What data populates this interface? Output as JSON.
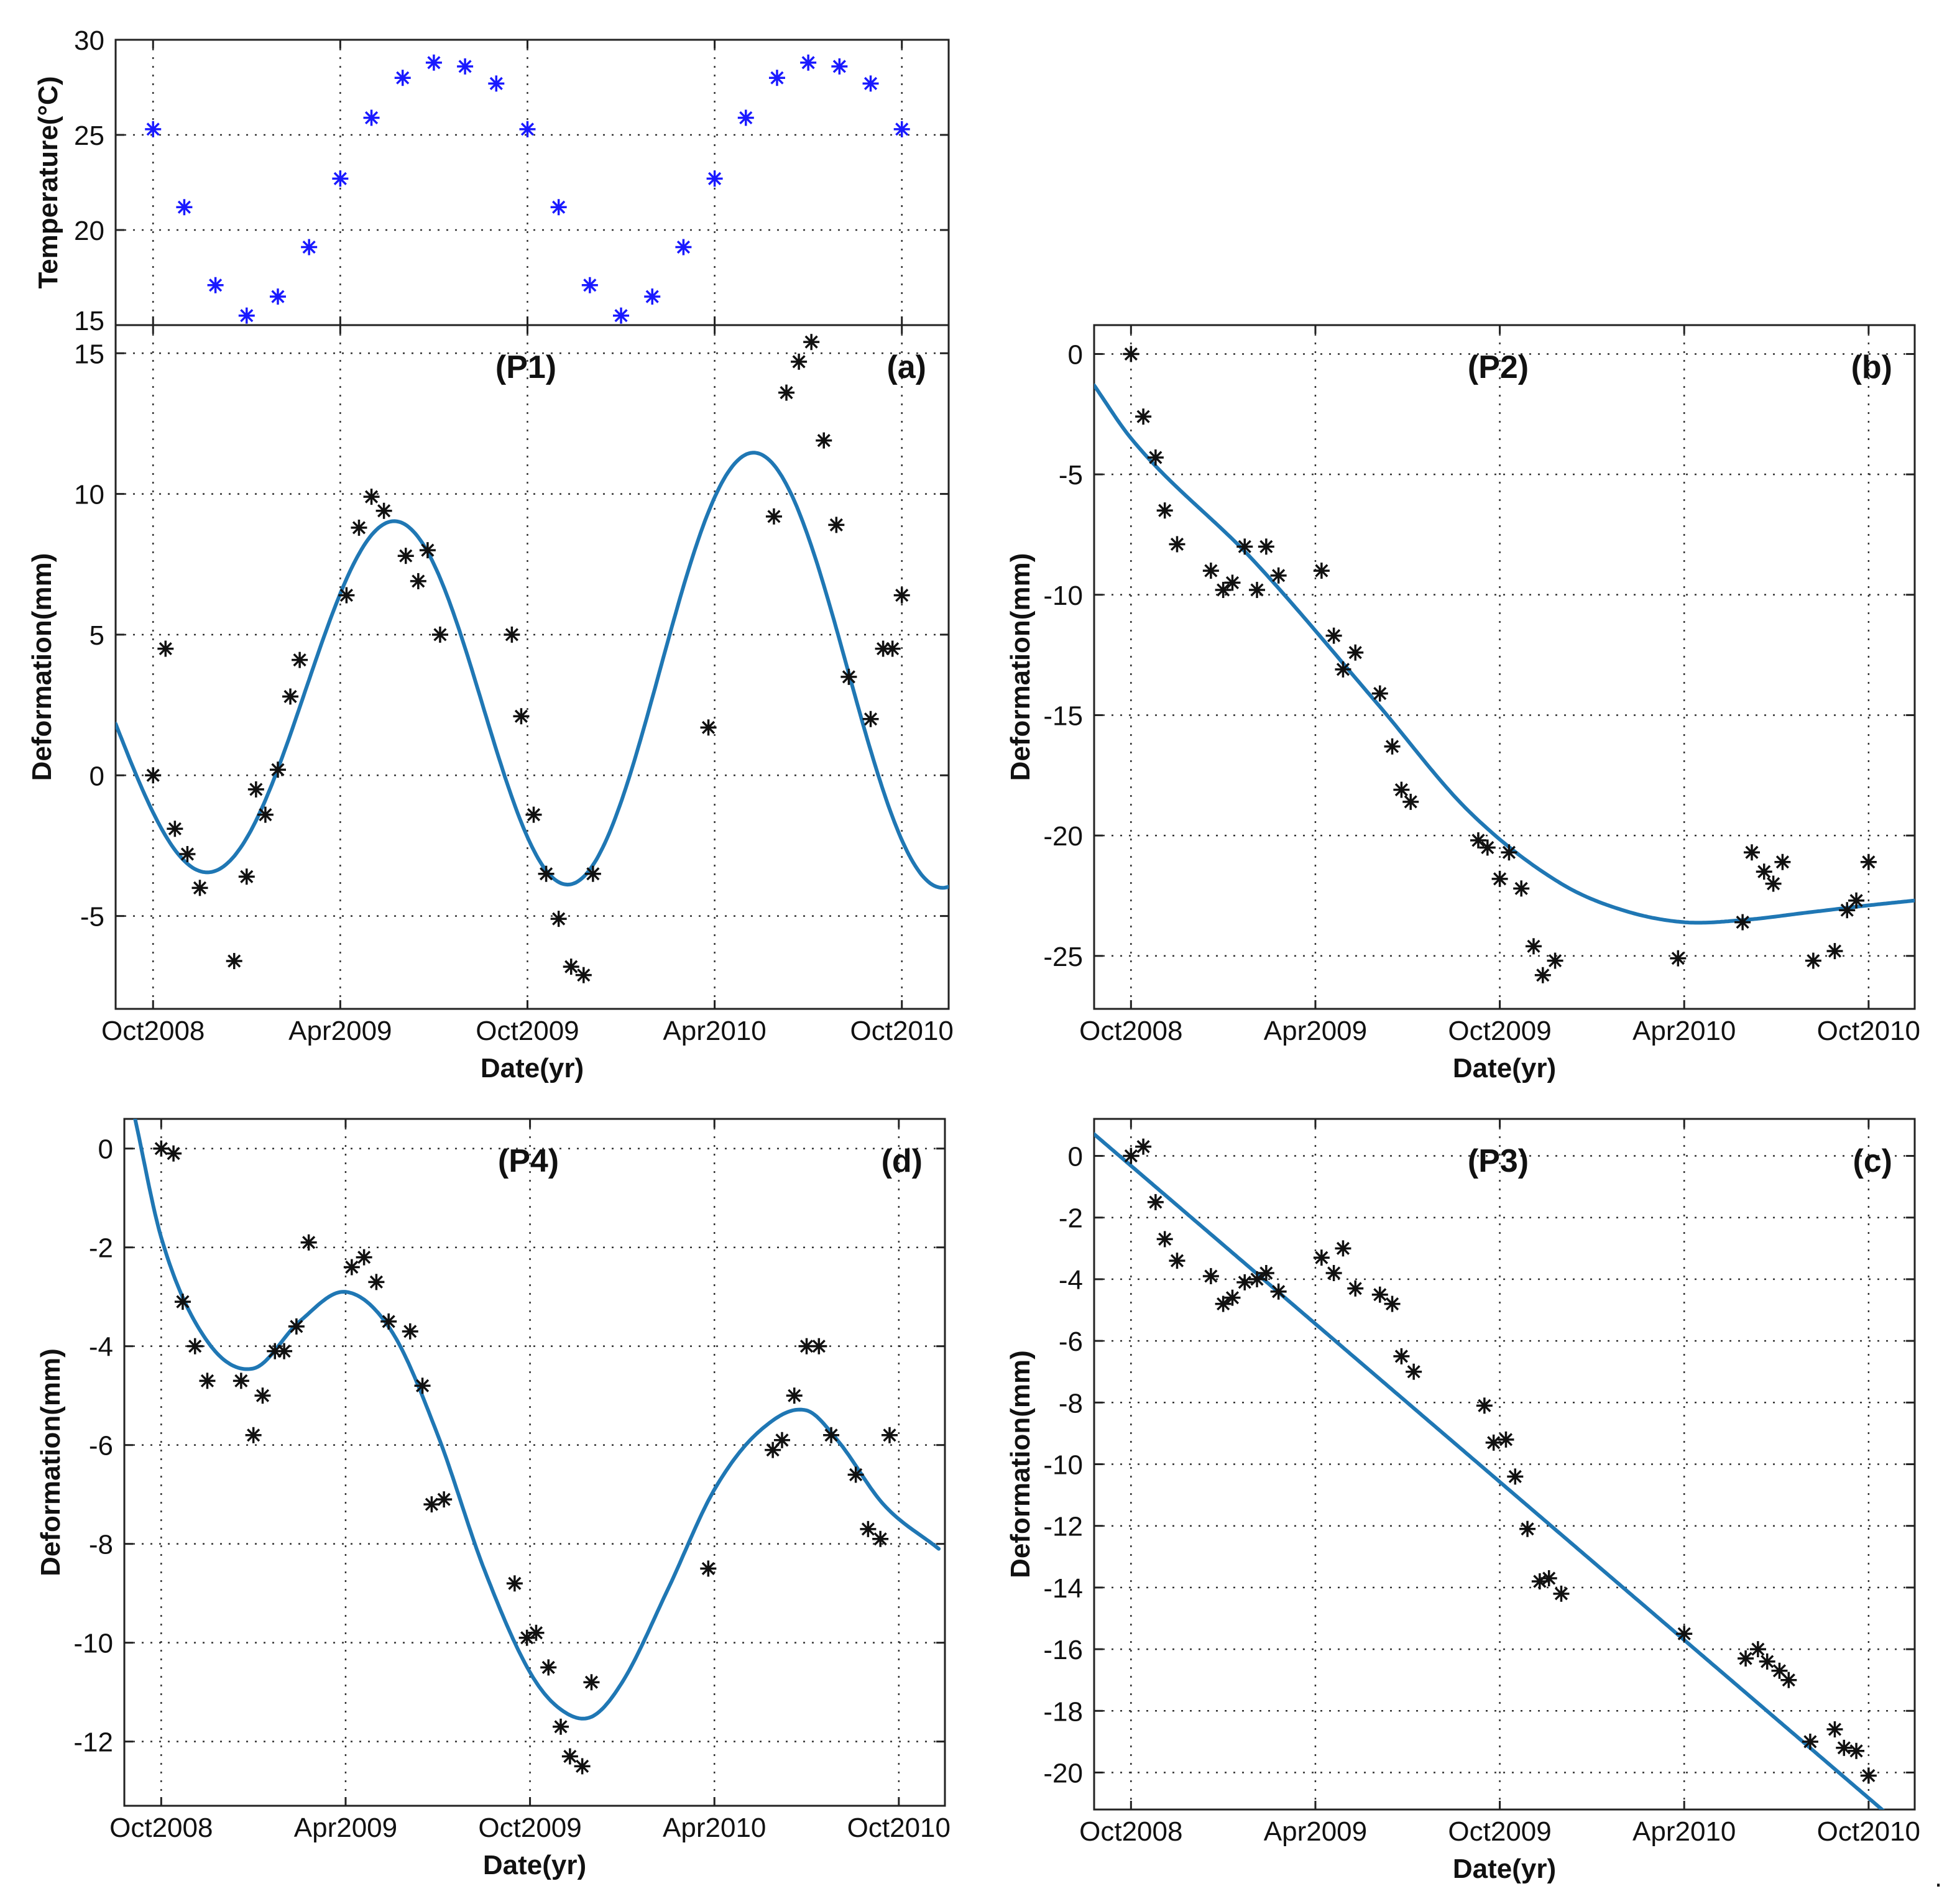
{
  "figure_mark": ".",
  "colors": {
    "fit_line": "#1f77b4",
    "marker": "#111111",
    "temp_marker": "#1a1aff",
    "grid": "#333333"
  },
  "chart_data": [
    {
      "id": "temp",
      "type": "scatter",
      "title": "",
      "xlabel": "",
      "ylabel": "Temperature(°C)",
      "xlim": [
        -1.2,
        25.5
      ],
      "ylim": [
        15,
        30
      ],
      "xticks": [
        0,
        6,
        12,
        18,
        24
      ],
      "xticklabels": [],
      "yticks": [
        15,
        20,
        25,
        30
      ],
      "marker_color": "#1a1aff",
      "points": [
        [
          0,
          25.3
        ],
        [
          1,
          21.2
        ],
        [
          2,
          17.1
        ],
        [
          3,
          15.5
        ],
        [
          4,
          16.5
        ],
        [
          5,
          19.1
        ],
        [
          6,
          22.7
        ],
        [
          7,
          25.9
        ],
        [
          8,
          28.0
        ],
        [
          9,
          28.8
        ],
        [
          10,
          28.6
        ],
        [
          11,
          27.7
        ],
        [
          12,
          25.3
        ],
        [
          13,
          21.2
        ],
        [
          14,
          17.1
        ],
        [
          15,
          15.5
        ],
        [
          16,
          16.5
        ],
        [
          17,
          19.1
        ],
        [
          18,
          22.7
        ],
        [
          19,
          25.9
        ],
        [
          20,
          28.0
        ],
        [
          21,
          28.8
        ],
        [
          22,
          28.6
        ],
        [
          23,
          27.7
        ],
        [
          24,
          25.3
        ]
      ]
    },
    {
      "id": "P1",
      "type": "scatter",
      "title": "(P1)",
      "panel_label": "(a)",
      "xlabel": "Date(yr)",
      "ylabel": "Deformation(mm)",
      "xlim": [
        -1.2,
        25.5
      ],
      "ylim": [
        -8.3,
        16
      ],
      "xticks": [
        0,
        6,
        12,
        18,
        24
      ],
      "xticklabels": [
        "Oct2008",
        "Apr2009",
        "Oct2009",
        "Apr2010",
        "Oct2010"
      ],
      "yticks": [
        -5,
        0,
        5,
        10,
        15
      ],
      "points": [
        [
          0,
          0.0
        ],
        [
          0.4,
          4.5
        ],
        [
          0.7,
          -1.9
        ],
        [
          1.1,
          -2.8
        ],
        [
          1.5,
          -4.0
        ],
        [
          2.6,
          -6.6
        ],
        [
          3.0,
          -3.6
        ],
        [
          3.3,
          -0.5
        ],
        [
          3.6,
          -1.4
        ],
        [
          4.0,
          0.2
        ],
        [
          4.4,
          2.8
        ],
        [
          4.7,
          4.1
        ],
        [
          6.2,
          6.4
        ],
        [
          6.6,
          8.8
        ],
        [
          7.0,
          9.9
        ],
        [
          7.4,
          9.4
        ],
        [
          8.1,
          7.8
        ],
        [
          8.5,
          6.9
        ],
        [
          8.8,
          8.0
        ],
        [
          9.2,
          5.0
        ],
        [
          11.5,
          5.0
        ],
        [
          11.8,
          2.1
        ],
        [
          12.2,
          -1.4
        ],
        [
          12.6,
          -3.5
        ],
        [
          13.0,
          -5.1
        ],
        [
          13.4,
          -6.8
        ],
        [
          13.8,
          -7.1
        ],
        [
          14.1,
          -3.5
        ],
        [
          17.8,
          1.7
        ],
        [
          19.9,
          9.2
        ],
        [
          20.3,
          13.6
        ],
        [
          20.7,
          14.7
        ],
        [
          21.1,
          15.4
        ],
        [
          21.5,
          11.9
        ],
        [
          21.9,
          8.9
        ],
        [
          22.3,
          3.5
        ],
        [
          23.0,
          2.0
        ],
        [
          23.4,
          4.5
        ],
        [
          23.7,
          4.5
        ],
        [
          24.0,
          6.4
        ]
      ],
      "fit_type": "sine",
      "fit": {
        "a": 7.6,
        "b": 0.66,
        "c": -0.205,
        "d": 2.0,
        "e": 9.0,
        "fmin": -1.2,
        "fmax": 25.5
      }
    },
    {
      "id": "P2",
      "type": "scatter",
      "title": "(P2)",
      "panel_label": "(b)",
      "xlabel": "Date(yr)",
      "ylabel": "Deformation(mm)",
      "xlim": [
        -1.2,
        25.5
      ],
      "ylim": [
        -27.2,
        1.2
      ],
      "xticks": [
        0,
        6,
        12,
        18,
        24
      ],
      "xticklabels": [
        "Oct2008",
        "Apr2009",
        "Oct2009",
        "Apr2010",
        "Oct2010"
      ],
      "yticks": [
        -25,
        -20,
        -15,
        -10,
        -5,
        0
      ],
      "points": [
        [
          0,
          0.0
        ],
        [
          0.4,
          -2.6
        ],
        [
          0.8,
          -4.3
        ],
        [
          1.1,
          -6.5
        ],
        [
          1.5,
          -7.9
        ],
        [
          2.6,
          -9.0
        ],
        [
          3.0,
          -9.8
        ],
        [
          3.3,
          -9.5
        ],
        [
          3.7,
          -8.0
        ],
        [
          4.1,
          -9.8
        ],
        [
          4.4,
          -8.0
        ],
        [
          4.8,
          -9.2
        ],
        [
          6.2,
          -9.0
        ],
        [
          6.6,
          -11.7
        ],
        [
          6.9,
          -13.1
        ],
        [
          7.3,
          -12.4
        ],
        [
          8.1,
          -14.1
        ],
        [
          8.5,
          -16.3
        ],
        [
          8.8,
          -18.1
        ],
        [
          9.1,
          -18.6
        ],
        [
          11.3,
          -20.2
        ],
        [
          11.6,
          -20.5
        ],
        [
          12.0,
          -21.8
        ],
        [
          12.3,
          -20.7
        ],
        [
          12.7,
          -22.2
        ],
        [
          13.1,
          -24.6
        ],
        [
          13.4,
          -25.8
        ],
        [
          13.8,
          -25.2
        ],
        [
          17.8,
          -25.1
        ],
        [
          19.9,
          -23.6
        ],
        [
          20.2,
          -20.7
        ],
        [
          20.6,
          -21.5
        ],
        [
          20.9,
          -22.0
        ],
        [
          21.2,
          -21.1
        ],
        [
          22.2,
          -25.2
        ],
        [
          22.9,
          -24.8
        ],
        [
          23.3,
          -23.1
        ],
        [
          23.6,
          -22.7
        ],
        [
          24.0,
          -21.1
        ]
      ],
      "fit_type": "spline",
      "fit": {
        "x": [
          -1.2,
          0,
          4,
          8,
          11,
          14,
          16,
          18,
          20,
          22,
          24,
          25.5
        ],
        "y": [
          -1.3,
          -3.5,
          -8.6,
          -14.5,
          -19.0,
          -22.0,
          -23.1,
          -23.6,
          -23.5,
          -23.2,
          -22.9,
          -22.7
        ]
      }
    },
    {
      "id": "P4",
      "type": "scatter",
      "title": "(P4)",
      "panel_label": "(d)",
      "xlabel": "Date(yr)",
      "ylabel": "Deformation(mm)",
      "xlim": [
        -1.2,
        25.5
      ],
      "ylim": [
        -13.3,
        0.6
      ],
      "xticks": [
        0,
        6,
        12,
        18,
        24
      ],
      "xticklabels": [
        "Oct2008",
        "Apr2009",
        "Oct2009",
        "Apr2010",
        "Oct2010"
      ],
      "yticks": [
        -12,
        -10,
        -8,
        -6,
        -4,
        -2,
        0
      ],
      "points": [
        [
          0,
          0.0
        ],
        [
          0.4,
          -0.1
        ],
        [
          0.7,
          -3.1
        ],
        [
          1.1,
          -4.0
        ],
        [
          1.5,
          -4.7
        ],
        [
          2.6,
          -4.7
        ],
        [
          3.0,
          -5.8
        ],
        [
          3.3,
          -5.0
        ],
        [
          3.7,
          -4.1
        ],
        [
          4.0,
          -4.1
        ],
        [
          4.4,
          -3.6
        ],
        [
          4.8,
          -1.9
        ],
        [
          6.2,
          -2.4
        ],
        [
          6.6,
          -2.2
        ],
        [
          7.0,
          -2.7
        ],
        [
          7.4,
          -3.5
        ],
        [
          8.1,
          -3.7
        ],
        [
          8.5,
          -4.8
        ],
        [
          8.8,
          -7.2
        ],
        [
          9.2,
          -7.1
        ],
        [
          11.5,
          -8.8
        ],
        [
          11.9,
          -9.9
        ],
        [
          12.2,
          -9.8
        ],
        [
          12.6,
          -10.5
        ],
        [
          13.0,
          -11.7
        ],
        [
          13.3,
          -12.3
        ],
        [
          13.7,
          -12.5
        ],
        [
          14.0,
          -10.8
        ],
        [
          17.8,
          -8.5
        ],
        [
          19.9,
          -6.1
        ],
        [
          20.2,
          -5.9
        ],
        [
          20.6,
          -5.0
        ],
        [
          21.0,
          -4.0
        ],
        [
          21.4,
          -4.0
        ],
        [
          21.8,
          -5.8
        ],
        [
          22.6,
          -6.6
        ],
        [
          23.0,
          -7.7
        ],
        [
          23.4,
          -7.9
        ],
        [
          23.7,
          -5.8
        ]
      ],
      "fit_type": "spline",
      "fit": {
        "x": [
          -0.85,
          0,
          1.5,
          3.0,
          4.5,
          6.0,
          7.5,
          9.0,
          10.5,
          12.0,
          13.0,
          14.0,
          15.0,
          16.5,
          18.0,
          19.5,
          21.0,
          22.0,
          23.5,
          25.3
        ],
        "y": [
          0.6,
          -1.8,
          -3.9,
          -4.45,
          -3.5,
          -2.9,
          -3.7,
          -5.8,
          -8.5,
          -10.6,
          -11.35,
          -11.5,
          -10.8,
          -8.9,
          -6.9,
          -5.7,
          -5.3,
          -5.9,
          -7.2,
          -8.1
        ]
      }
    },
    {
      "id": "P3",
      "type": "scatter",
      "title": "(P3)",
      "panel_label": "(c)",
      "xlabel": "Date(yr)",
      "ylabel": "Deformation(mm)",
      "xlim": [
        -1.2,
        25.5
      ],
      "ylim": [
        -21.2,
        1.2
      ],
      "xticks": [
        0,
        6,
        12,
        18,
        24
      ],
      "xticklabels": [
        "Oct2008",
        "Apr2009",
        "Oct2009",
        "Apr2010",
        "Oct2010"
      ],
      "yticks": [
        -20,
        -18,
        -16,
        -14,
        -12,
        -10,
        -8,
        -6,
        -4,
        -2,
        0
      ],
      "points": [
        [
          0,
          0.0
        ],
        [
          0.4,
          0.3
        ],
        [
          0.8,
          -1.5
        ],
        [
          1.1,
          -2.7
        ],
        [
          1.5,
          -3.4
        ],
        [
          2.6,
          -3.9
        ],
        [
          3.0,
          -4.8
        ],
        [
          3.3,
          -4.6
        ],
        [
          3.7,
          -4.1
        ],
        [
          4.1,
          -4.0
        ],
        [
          4.4,
          -3.8
        ],
        [
          4.8,
          -4.4
        ],
        [
          6.2,
          -3.3
        ],
        [
          6.6,
          -3.8
        ],
        [
          6.9,
          -3.0
        ],
        [
          7.3,
          -4.3
        ],
        [
          8.1,
          -4.5
        ],
        [
          8.5,
          -4.8
        ],
        [
          8.8,
          -6.5
        ],
        [
          9.2,
          -7.0
        ],
        [
          11.5,
          -8.1
        ],
        [
          11.8,
          -9.3
        ],
        [
          12.2,
          -9.2
        ],
        [
          12.5,
          -10.4
        ],
        [
          12.9,
          -12.1
        ],
        [
          13.3,
          -13.8
        ],
        [
          13.6,
          -13.7
        ],
        [
          14.0,
          -14.2
        ],
        [
          18.0,
          -15.5
        ],
        [
          20.0,
          -16.3
        ],
        [
          20.4,
          -16.0
        ],
        [
          20.7,
          -16.4
        ],
        [
          21.1,
          -16.7
        ],
        [
          21.4,
          -17.0
        ],
        [
          22.1,
          -19.0
        ],
        [
          22.9,
          -18.6
        ],
        [
          23.2,
          -19.2
        ],
        [
          23.6,
          -19.3
        ],
        [
          24.0,
          -20.1
        ]
      ],
      "fit_type": "linear",
      "fit": {
        "slope": -0.8545,
        "intercept": -0.32
      }
    }
  ]
}
